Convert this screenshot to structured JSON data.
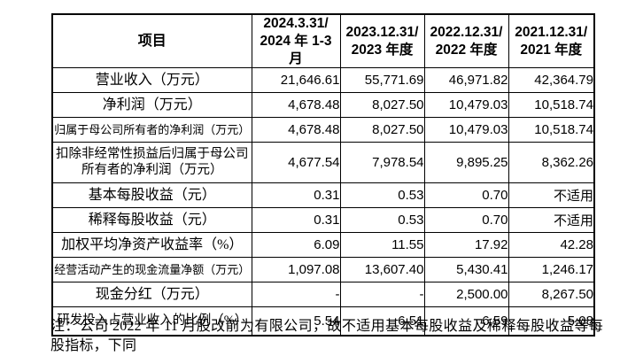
{
  "table": {
    "header": [
      "项目",
      "2024.3.31/\n2024 年 1-3 月",
      "2023.12.31/\n2023 年度",
      "2022.12.31/\n2022 年度",
      "2021.12.31/\n2021 年度"
    ],
    "rows": [
      {
        "label": "营业收入（万元）",
        "values": [
          "21,646.61",
          "55,771.69",
          "46,971.82",
          "42,364.79"
        ]
      },
      {
        "label": "净利润（万元）",
        "values": [
          "4,678.48",
          "8,027.50",
          "10,479.03",
          "10,518.74"
        ]
      },
      {
        "label": "归属于母公司所有者的净利润（万元）",
        "values": [
          "4,678.48",
          "8,027.50",
          "10,479.03",
          "10,518.74"
        ]
      },
      {
        "label": "扣除非经常性损益后归属于母公司\n所有者的净利润（万元）",
        "tall": true,
        "values": [
          "4,677.54",
          "7,978.54",
          "9,895.25",
          "8,362.26"
        ]
      },
      {
        "label": "基本每股收益（元）",
        "values": [
          "0.31",
          "0.53",
          "0.70",
          "不适用"
        ]
      },
      {
        "label": "稀释每股收益（元）",
        "values": [
          "0.31",
          "0.53",
          "0.70",
          "不适用"
        ]
      },
      {
        "label": "加权平均净资产收益率（%）",
        "values": [
          "6.09",
          "11.55",
          "17.92",
          "42.28"
        ]
      },
      {
        "label": "经营活动产生的现金流量净额（万元）",
        "values": [
          "1,097.08",
          "13,607.40",
          "5,430.41",
          "1,246.17"
        ]
      },
      {
        "label": "现金分红（万元）",
        "values": [
          "-",
          "-",
          "2,500.00",
          "8,267.50"
        ]
      },
      {
        "label": "研发投入占营业收入的比例（%）",
        "last": true,
        "values": [
          "5.54",
          "6.51",
          "6.59",
          "5.08"
        ]
      }
    ]
  },
  "note": "注：公司 2022 年 11 月股改前为有限公司，故不适用基本每股收益及稀释每股收益等每股指标，下同",
  "colors": {
    "border": "#000000",
    "text": "#000000",
    "background": "#ffffff"
  }
}
